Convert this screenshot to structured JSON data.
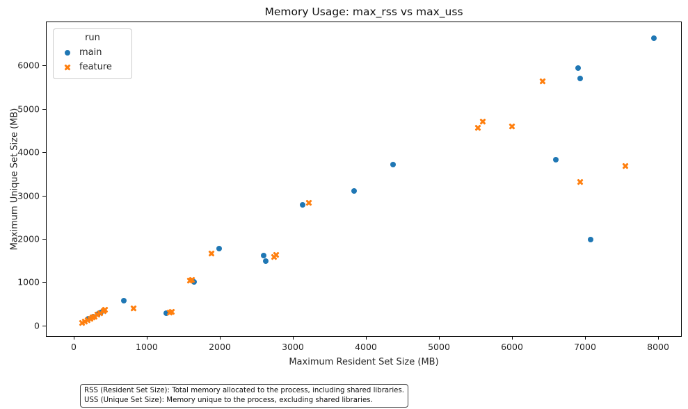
{
  "title": "Memory Usage: max_rss vs max_uss",
  "legend": {
    "title": "run",
    "items": [
      {
        "label": "main",
        "marker": "circle",
        "color": "#1f77b4"
      },
      {
        "label": "feature",
        "marker": "x",
        "color": "#ff7f0e"
      }
    ]
  },
  "footnote": {
    "line1": "RSS (Resident Set Size): Total memory allocated to the process, including shared libraries.",
    "line2": "USS (Unique Set Size): Memory unique to the process, excluding shared libraries."
  },
  "chart_data": {
    "type": "scatter",
    "title": "Memory Usage: max_rss vs max_uss",
    "xlabel": "Maximum Resident Set Size (MB)",
    "ylabel": "Maximum Unique Set Size (MB)",
    "xlim": [
      -371,
      8333
    ],
    "ylim": [
      -277,
      7000
    ],
    "x_ticks": [
      0,
      1000,
      2000,
      3000,
      4000,
      5000,
      6000,
      7000,
      8000
    ],
    "y_ticks": [
      0,
      1000,
      2000,
      3000,
      4000,
      5000,
      6000
    ],
    "grid": false,
    "legend_position": "upper left",
    "series": [
      {
        "name": "main",
        "marker": "circle",
        "color": "#1f77b4",
        "points": [
          [
            7940,
            6630
          ],
          [
            6900,
            5950
          ],
          [
            6930,
            5700
          ],
          [
            6600,
            3830
          ],
          [
            7080,
            1990
          ],
          [
            4370,
            3720
          ],
          [
            3840,
            3110
          ],
          [
            3130,
            2780
          ],
          [
            1990,
            1780
          ],
          [
            2600,
            1620
          ],
          [
            2630,
            1490
          ],
          [
            1650,
            1000
          ],
          [
            1270,
            290
          ],
          [
            690,
            580
          ],
          [
            200,
            150
          ],
          [
            270,
            210
          ],
          [
            330,
            260
          ],
          [
            370,
            300
          ]
        ]
      },
      {
        "name": "feature",
        "marker": "x",
        "color": "#ff7f0e",
        "points": [
          [
            6420,
            5630
          ],
          [
            5600,
            4710
          ],
          [
            5530,
            4570
          ],
          [
            6000,
            4590
          ],
          [
            7550,
            3680
          ],
          [
            6930,
            3310
          ],
          [
            3220,
            2840
          ],
          [
            1890,
            1670
          ],
          [
            2740,
            1590
          ],
          [
            2770,
            1630
          ],
          [
            1590,
            1030
          ],
          [
            1620,
            1050
          ],
          [
            1310,
            300
          ],
          [
            1340,
            320
          ],
          [
            820,
            390
          ],
          [
            110,
            60
          ],
          [
            150,
            90
          ],
          [
            190,
            120
          ],
          [
            230,
            160
          ],
          [
            260,
            190
          ],
          [
            290,
            210
          ],
          [
            320,
            250
          ],
          [
            360,
            290
          ],
          [
            410,
            340
          ],
          [
            430,
            360
          ]
        ]
      }
    ]
  }
}
